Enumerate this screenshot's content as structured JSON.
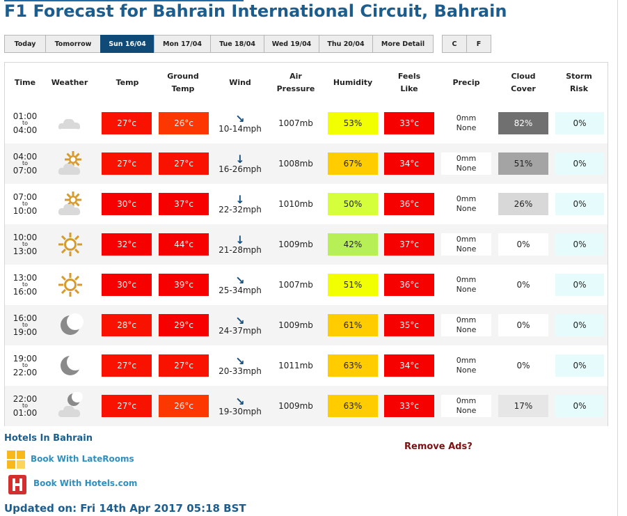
{
  "page_title": "F1 Forecast for Bahrain International Circuit, Bahrain",
  "day_tabs": [
    {
      "label": "Today",
      "active": false
    },
    {
      "label": "Tomorrow",
      "active": false
    },
    {
      "label": "Sun 16/04",
      "active": true
    },
    {
      "label": "Mon 17/04",
      "active": false
    },
    {
      "label": "Tue 18/04",
      "active": false
    },
    {
      "label": "Wed 19/04",
      "active": false
    },
    {
      "label": "Thu 20/04",
      "active": false
    },
    {
      "label": "More Detail",
      "active": false
    }
  ],
  "unit_tabs": [
    "C",
    "F"
  ],
  "columns": {
    "time": "Time",
    "weather": "Weather",
    "temp": "Temp",
    "ground_temp_1": "Ground",
    "ground_temp_2": "Temp",
    "wind": "Wind",
    "air_pressure_1": "Air",
    "air_pressure_2": "Pressure",
    "humidity": "Humidity",
    "feels_like_1": "Feels",
    "feels_like_2": "Like",
    "precip": "Precip",
    "cloud_cover_1": "Cloud",
    "cloud_cover_2": "Cover",
    "storm_risk_1": "Storm",
    "storm_risk_2": "Risk"
  },
  "rows": [
    {
      "from": "01:00",
      "to_word": "to",
      "to": "04:00",
      "icon": "cloud-icon",
      "temp": "27°c",
      "ground": "26°c",
      "wind": "10-14mph",
      "wind_dir": "↘",
      "pressure": "1007mb",
      "humidity": "53%",
      "feels": "33°c",
      "precip_amount": "0mm",
      "precip_type": "None",
      "cloud": "82%",
      "storm": "0%"
    },
    {
      "from": "04:00",
      "to_word": "to",
      "to": "07:00",
      "icon": "sun-behind-cloud-icon",
      "temp": "27°c",
      "ground": "27°c",
      "wind": "16-26mph",
      "wind_dir": "↓",
      "pressure": "1008mb",
      "humidity": "67%",
      "feels": "34°c",
      "precip_amount": "0mm",
      "precip_type": "None",
      "cloud": "51%",
      "storm": "0%"
    },
    {
      "from": "07:00",
      "to_word": "to",
      "to": "10:00",
      "icon": "sun-behind-cloud-icon",
      "temp": "30°c",
      "ground": "37°c",
      "wind": "22-32mph",
      "wind_dir": "↓",
      "pressure": "1010mb",
      "humidity": "50%",
      "feels": "36°c",
      "precip_amount": "0mm",
      "precip_type": "None",
      "cloud": "26%",
      "storm": "0%"
    },
    {
      "from": "10:00",
      "to_word": "to",
      "to": "13:00",
      "icon": "sun-icon",
      "temp": "32°c",
      "ground": "44°c",
      "wind": "21-28mph",
      "wind_dir": "↓",
      "pressure": "1009mb",
      "humidity": "42%",
      "feels": "37°c",
      "precip_amount": "0mm",
      "precip_type": "None",
      "cloud": "0%",
      "storm": "0%"
    },
    {
      "from": "13:00",
      "to_word": "to",
      "to": "16:00",
      "icon": "sun-icon",
      "temp": "30°c",
      "ground": "39°c",
      "wind": "25-34mph",
      "wind_dir": "↘",
      "pressure": "1007mb",
      "humidity": "51%",
      "feels": "36°c",
      "precip_amount": "0mm",
      "precip_type": "None",
      "cloud": "0%",
      "storm": "0%"
    },
    {
      "from": "16:00",
      "to_word": "to",
      "to": "19:00",
      "icon": "moon-icon",
      "temp": "28°c",
      "ground": "29°c",
      "wind": "24-37mph",
      "wind_dir": "↘",
      "pressure": "1009mb",
      "humidity": "61%",
      "feels": "35°c",
      "precip_amount": "0mm",
      "precip_type": "None",
      "cloud": "0%",
      "storm": "0%"
    },
    {
      "from": "19:00",
      "to_word": "to",
      "to": "22:00",
      "icon": "moon-icon",
      "temp": "27°c",
      "ground": "27°c",
      "wind": "20-33mph",
      "wind_dir": "↘",
      "pressure": "1011mb",
      "humidity": "63%",
      "feels": "34°c",
      "precip_amount": "0mm",
      "precip_type": "None",
      "cloud": "0%",
      "storm": "0%"
    },
    {
      "from": "22:00",
      "to_word": "to",
      "to": "01:00",
      "icon": "moon-behind-cloud-icon",
      "temp": "27°c",
      "ground": "26°c",
      "wind": "19-30mph",
      "wind_dir": "↘",
      "pressure": "1009mb",
      "humidity": "63%",
      "feels": "33°c",
      "precip_amount": "0mm",
      "precip_type": "None",
      "cloud": "17%",
      "storm": "0%"
    }
  ],
  "colors": {
    "temp": [
      "#f91200",
      "#f91200",
      "#f60000",
      "#f60000",
      "#f60000",
      "#f91200",
      "#f91200",
      "#f91200"
    ],
    "ground": [
      "#fc3700",
      "#f91200",
      "#f60000",
      "#f60000",
      "#f60000",
      "#f60000",
      "#f91200",
      "#fc3700"
    ],
    "humidity": [
      "#f2ff00",
      "#ffcc00",
      "#d4ff3a",
      "#b7f056",
      "#f2ff00",
      "#ffcc00",
      "#ffcc00",
      "#ffcc00"
    ],
    "feels": [
      "#f60000",
      "#f60000",
      "#f60000",
      "#f60000",
      "#f60000",
      "#f60000",
      "#f60000",
      "#f60000"
    ],
    "cloud": [
      "#707070",
      "#a4a4a4",
      "#d8d8d8",
      "#ffffff",
      "#ffffff",
      "#ffffff",
      "#ffffff",
      "#e6e6e6"
    ],
    "cloud_text": [
      "#ffffff",
      "#222222",
      "#222222",
      "#222222",
      "#222222",
      "#222222",
      "#222222",
      "#222222"
    ],
    "storm": "#e6fcfc",
    "accent": "#1b5d8e",
    "active_tab": "#104a77"
  },
  "footer": {
    "hotels_title": "Hotels In Bahrain",
    "laterooms": "Book With LateRooms",
    "hotelscom": "Book With Hotels.com",
    "remove_ads": "Remove Ads?",
    "updated": "Updated on: Fri 14th Apr 2017 05:18 BST"
  }
}
